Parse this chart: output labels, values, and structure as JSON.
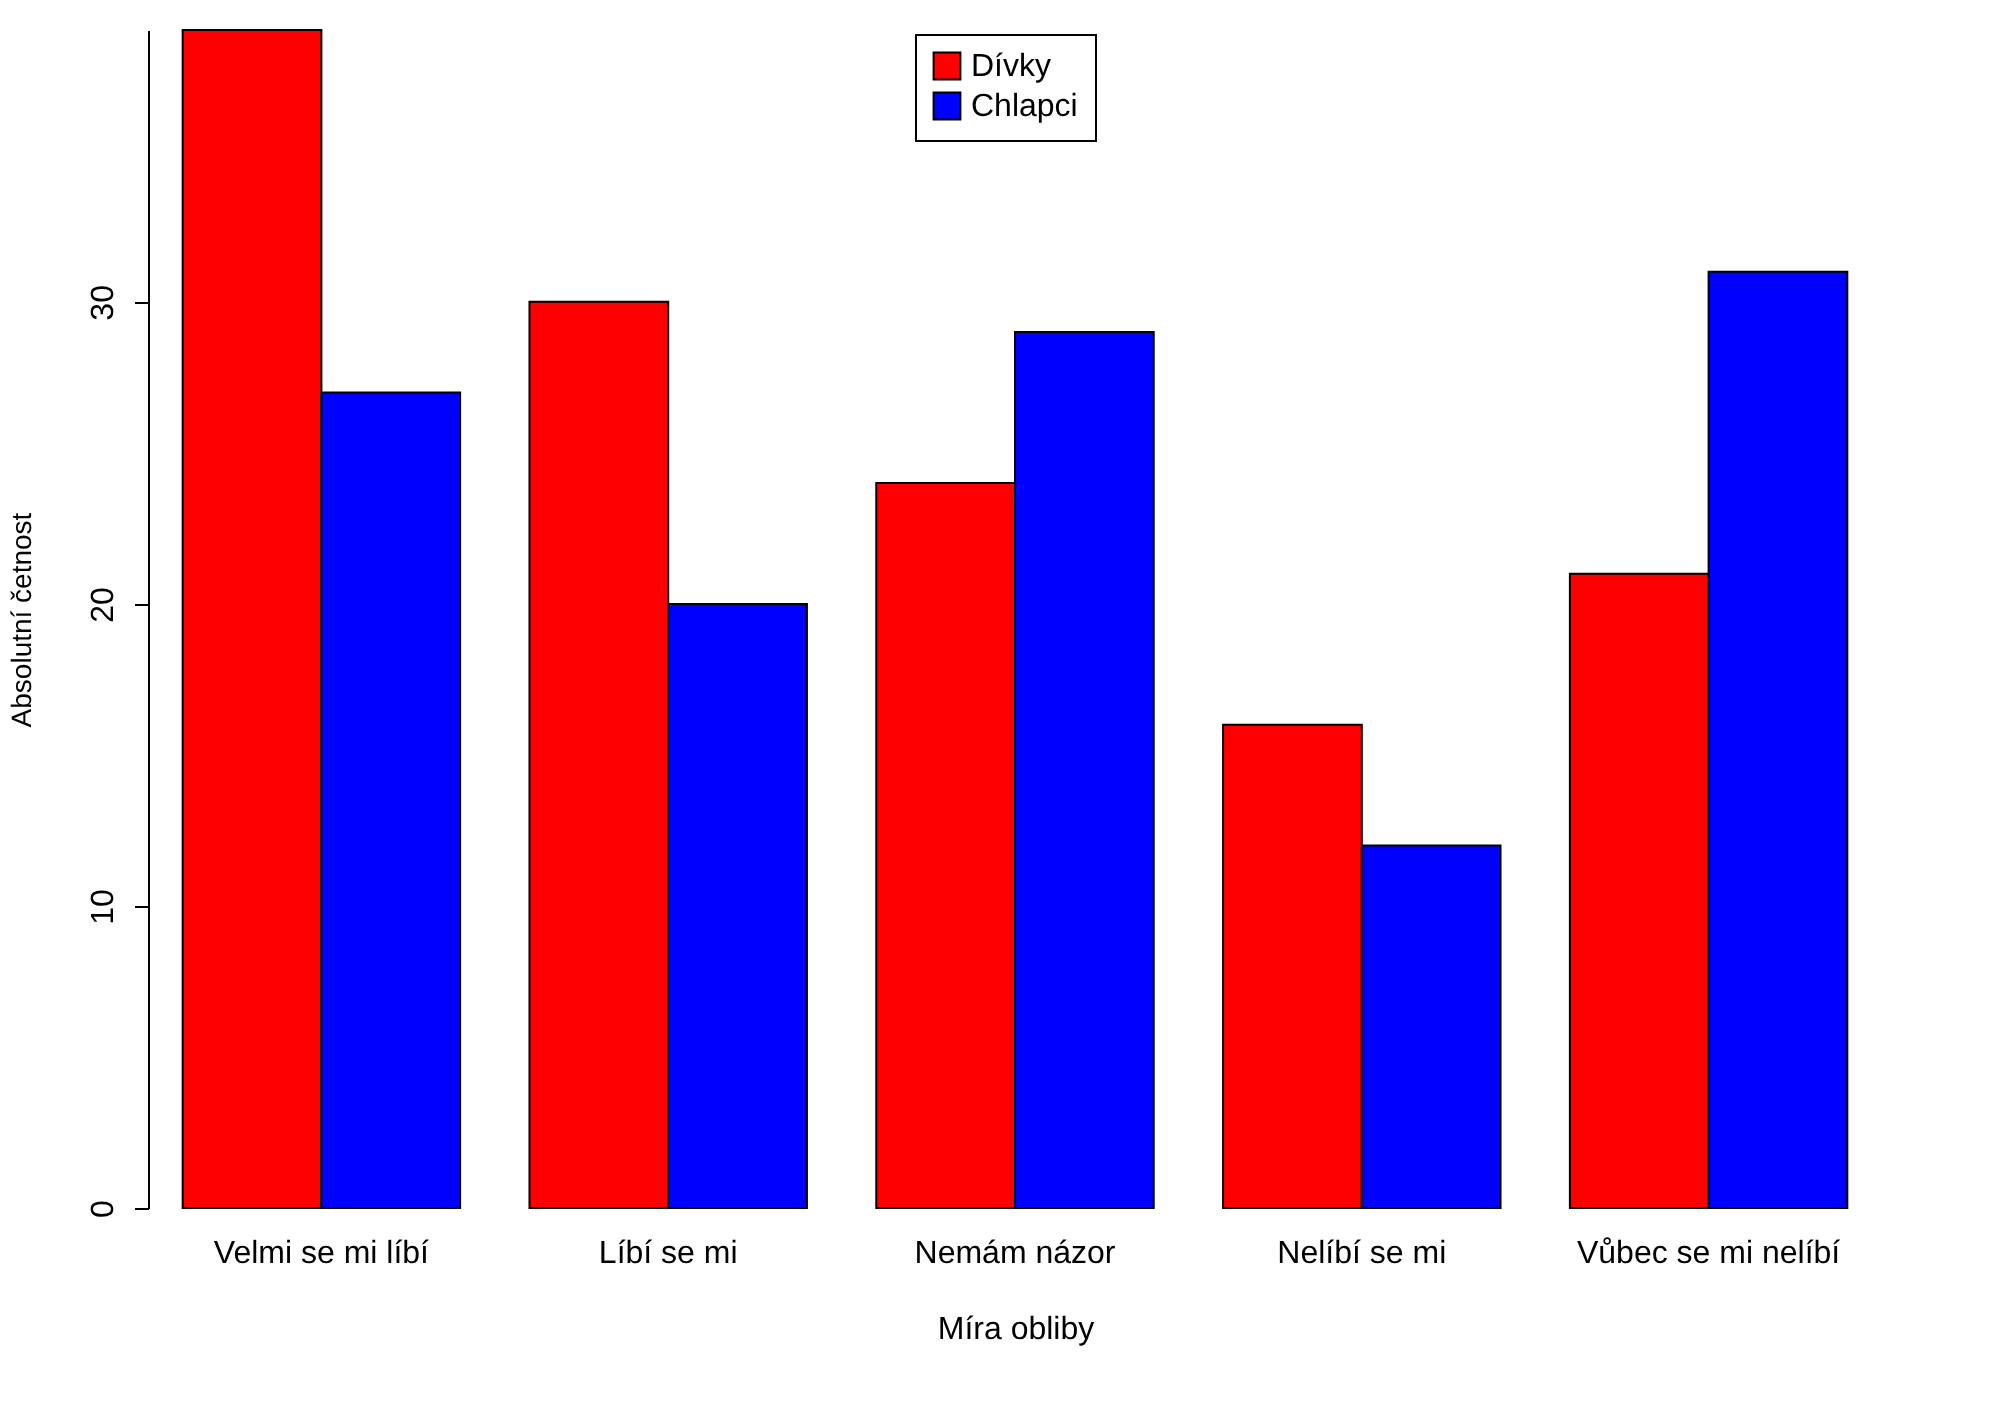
{
  "chart_data": {
    "type": "bar",
    "xlabel": "Míra obliby",
    "ylabel": "Absolutní četnost",
    "categories": [
      "Velmi se mi líbí",
      "Líbí se mi",
      "Nemám názor",
      "Nelíbí se mi",
      "Vůbec se mi nelíbí"
    ],
    "series": [
      {
        "name": "Dívky",
        "color": "#ff0000",
        "values": [
          39,
          30,
          24,
          16,
          21
        ]
      },
      {
        "name": "Chlapci",
        "color": "#0000ff",
        "values": [
          27,
          20,
          29,
          12,
          31
        ]
      }
    ],
    "ylim": [
      0,
      39
    ],
    "yticks": [
      0,
      10,
      20,
      30
    ],
    "grid": false,
    "legend": "top"
  }
}
